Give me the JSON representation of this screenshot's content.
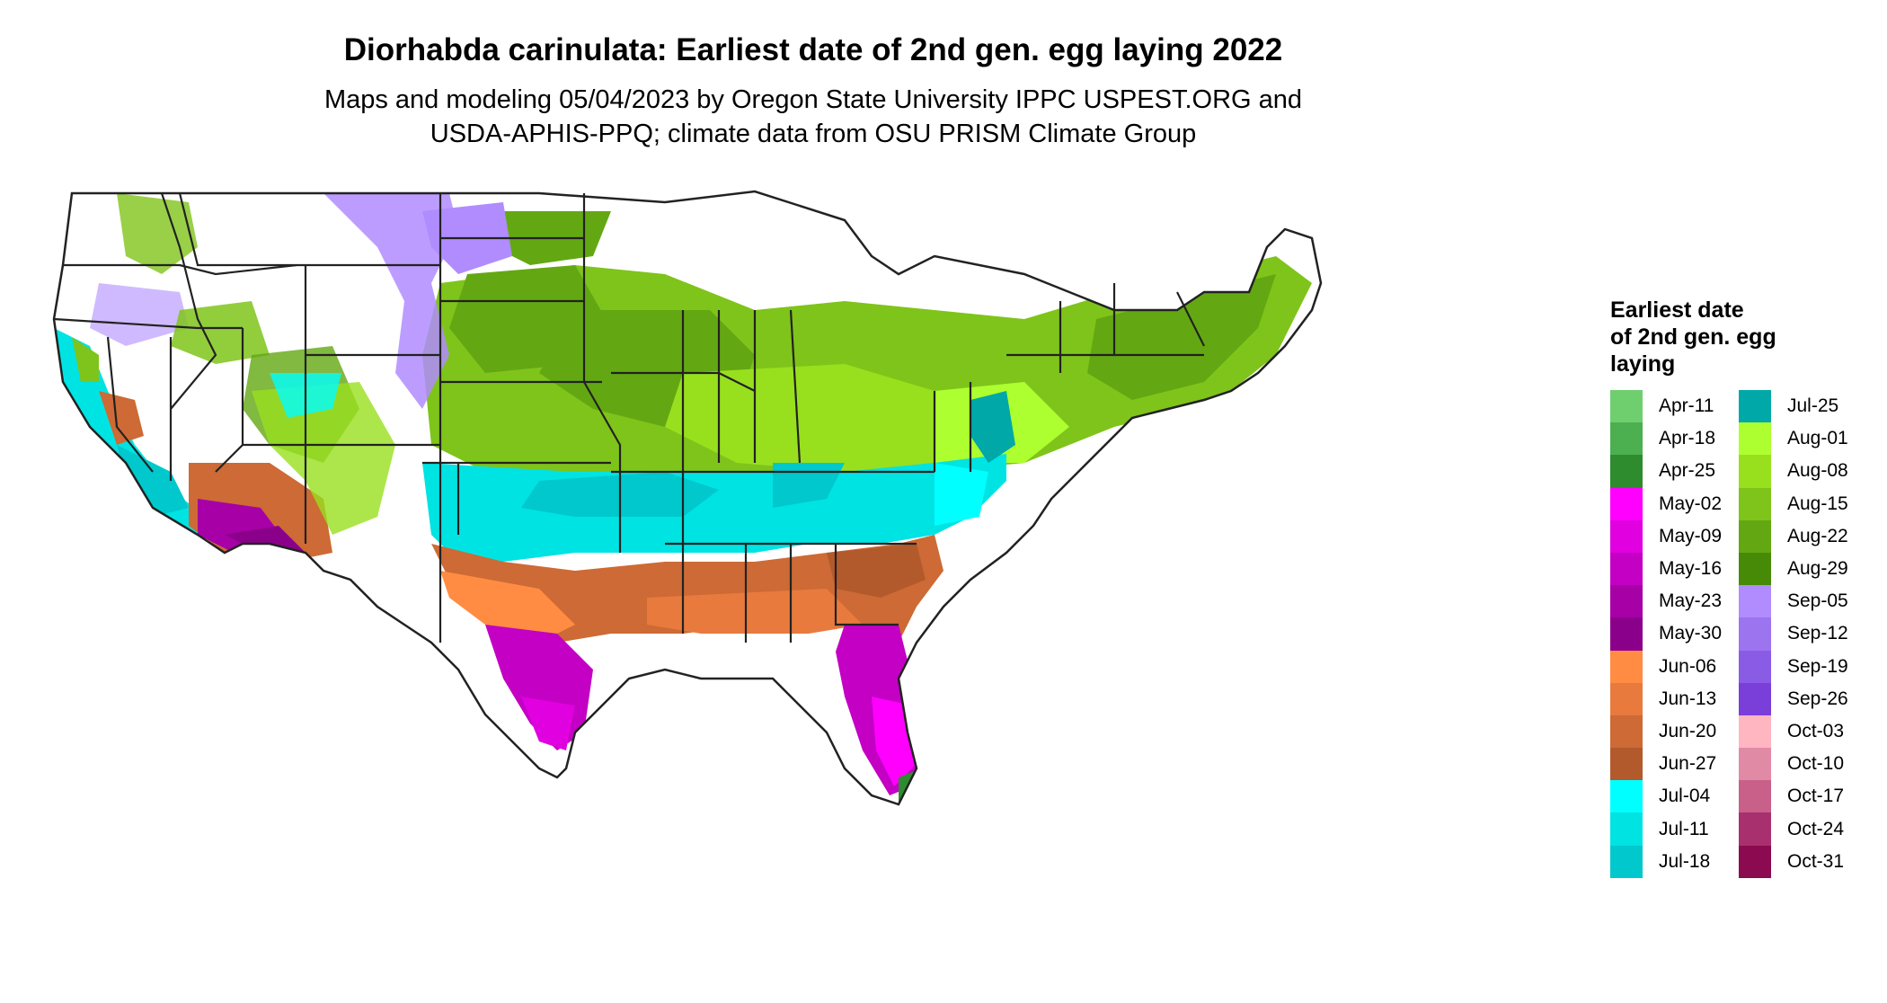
{
  "title": "Diorhabda carinulata: Earliest date of 2nd gen. egg laying 2022",
  "subtitle_line1": "Maps and modeling 05/04/2023 by Oregon State University IPPC USPEST.ORG and",
  "subtitle_line2": "USDA-APHIS-PPQ; climate data from OSU PRISM Climate Group",
  "legend": {
    "title_line1": "Earliest date",
    "title_line2": "of 2nd gen. egg",
    "title_line3": "laying",
    "column1": [
      {
        "label": "Apr-11",
        "color": "#6fcf6f"
      },
      {
        "label": "Apr-18",
        "color": "#4caf50"
      },
      {
        "label": "Apr-25",
        "color": "#2e8b2e"
      },
      {
        "label": "May-02",
        "color": "#ff00ff"
      },
      {
        "label": "May-09",
        "color": "#e000e0"
      },
      {
        "label": "May-16",
        "color": "#c300c3"
      },
      {
        "label": "May-23",
        "color": "#a600a6"
      },
      {
        "label": "May-30",
        "color": "#8b008b"
      },
      {
        "label": "Jun-06",
        "color": "#ff8c42"
      },
      {
        "label": "Jun-13",
        "color": "#e87a3e"
      },
      {
        "label": "Jun-20",
        "color": "#cd6a35"
      },
      {
        "label": "Jun-27",
        "color": "#b35a2c"
      },
      {
        "label": "Jul-04",
        "color": "#00ffff"
      },
      {
        "label": "Jul-11",
        "color": "#00e3e3"
      },
      {
        "label": "Jul-18",
        "color": "#00c8cc"
      }
    ],
    "column2": [
      {
        "label": "Jul-25",
        "color": "#00a8a8"
      },
      {
        "label": "Aug-01",
        "color": "#adff2f"
      },
      {
        "label": "Aug-08",
        "color": "#98e01e"
      },
      {
        "label": "Aug-15",
        "color": "#7fc41a"
      },
      {
        "label": "Aug-22",
        "color": "#63a812"
      },
      {
        "label": "Aug-29",
        "color": "#478a08"
      },
      {
        "label": "Sep-05",
        "color": "#b08cff"
      },
      {
        "label": "Sep-12",
        "color": "#9c74f0"
      },
      {
        "label": "Sep-19",
        "color": "#8a5ce6"
      },
      {
        "label": "Sep-26",
        "color": "#7a3fd9"
      },
      {
        "label": "Oct-03",
        "color": "#ffb6c1"
      },
      {
        "label": "Oct-10",
        "color": "#e08aa6"
      },
      {
        "label": "Oct-17",
        "color": "#c8608a"
      },
      {
        "label": "Oct-24",
        "color": "#a8306e"
      },
      {
        "label": "Oct-31",
        "color": "#8b0a50"
      }
    ]
  },
  "map": {
    "border_color": "#222222",
    "no_data_color": "#ffffff"
  }
}
